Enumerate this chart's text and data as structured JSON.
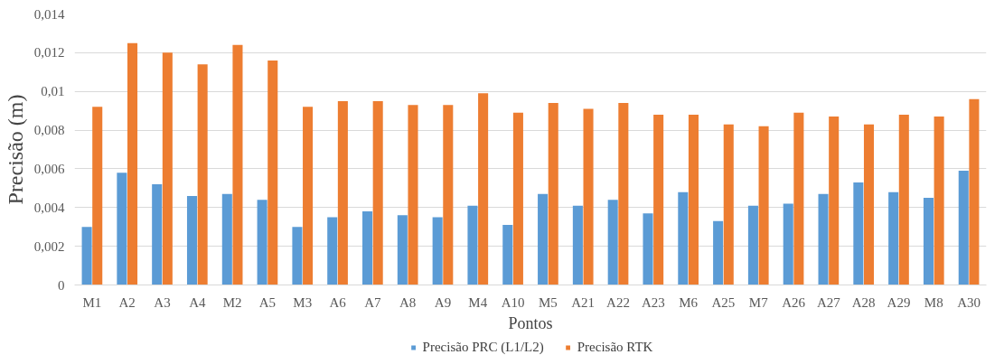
{
  "chart_data": {
    "type": "bar",
    "xlabel": "Pontos",
    "ylabel": "Precisão (m)",
    "categories": [
      "M1",
      "A2",
      "A3",
      "A4",
      "M2",
      "A5",
      "M3",
      "A6",
      "A7",
      "A8",
      "A9",
      "M4",
      "A10",
      "M5",
      "A21",
      "A22",
      "A23",
      "M6",
      "A25",
      "M7",
      "A26",
      "A27",
      "A28",
      "A29",
      "M8",
      "A30"
    ],
    "series": [
      {
        "name": "Precisão PRC (L1/L2)",
        "color": "#5b9bd5",
        "values": [
          0.003,
          0.0058,
          0.0052,
          0.0046,
          0.0047,
          0.0044,
          0.003,
          0.0035,
          0.0038,
          0.0036,
          0.0035,
          0.0041,
          0.0031,
          0.0047,
          0.0041,
          0.0044,
          0.0037,
          0.0048,
          0.0033,
          0.0041,
          0.0042,
          0.0047,
          0.0053,
          0.0048,
          0.0045,
          0.0059
        ]
      },
      {
        "name": "Precisão RTK",
        "color": "#ed7d31",
        "values": [
          0.0092,
          0.0125,
          0.012,
          0.0114,
          0.0124,
          0.0116,
          0.0092,
          0.0095,
          0.0095,
          0.0093,
          0.0093,
          0.0099,
          0.0089,
          0.0094,
          0.0091,
          0.0094,
          0.0088,
          0.0088,
          0.0083,
          0.0082,
          0.0089,
          0.0087,
          0.0083,
          0.0088,
          0.0087,
          0.0096
        ]
      }
    ],
    "ylim": [
      0,
      0.014
    ],
    "yticks": [
      {
        "value": 0,
        "label": "0"
      },
      {
        "value": 0.002,
        "label": "0,002"
      },
      {
        "value": 0.004,
        "label": "0,004"
      },
      {
        "value": 0.006,
        "label": "0,006"
      },
      {
        "value": 0.008,
        "label": "0,008"
      },
      {
        "value": 0.01,
        "label": "0,01"
      },
      {
        "value": 0.012,
        "label": "0,012"
      },
      {
        "value": 0.014,
        "label": "0,014"
      }
    ],
    "grid": "y",
    "legend": "bottom"
  }
}
